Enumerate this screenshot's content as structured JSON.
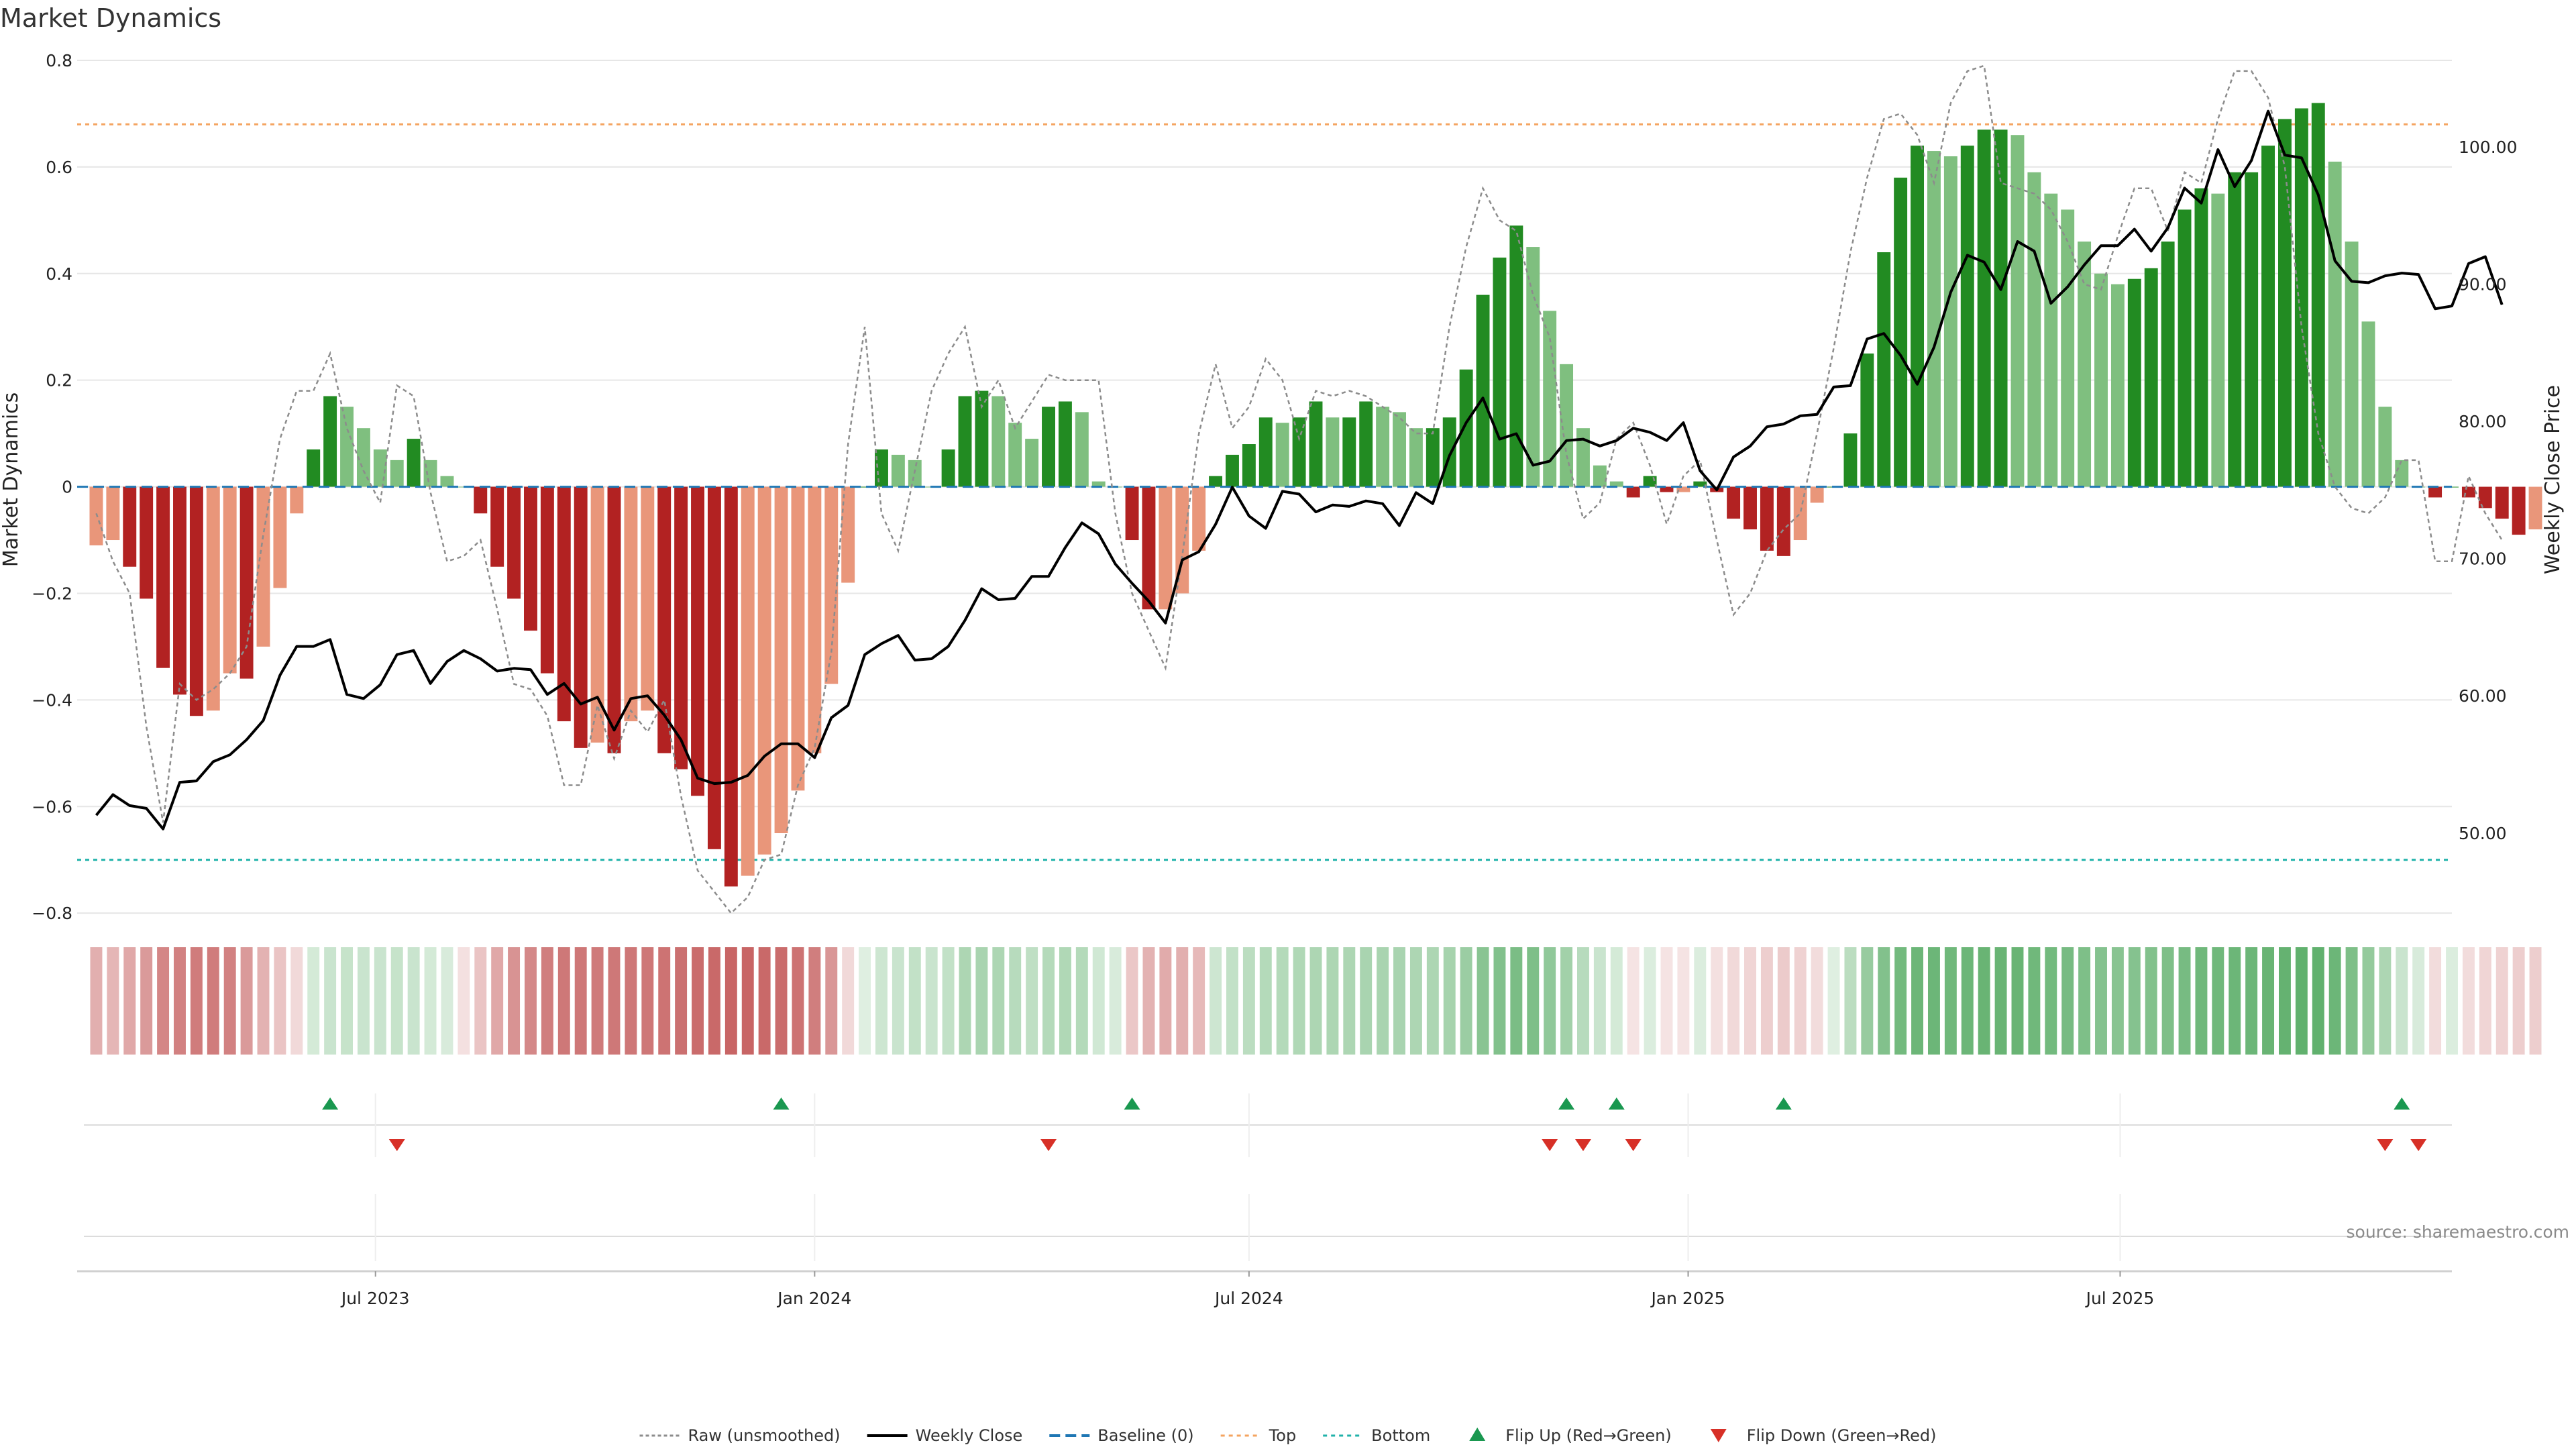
{
  "chart_data": {
    "type": "bar",
    "title": "Market Dynamics",
    "ylabel": "Market Dynamics",
    "y2label": "Weekly Close Price",
    "ylim": [
      -0.83,
      0.8
    ],
    "y2lim": [
      43.0,
      106.3
    ],
    "yticks": [
      {
        "v": 0.8,
        "label": "0.8"
      },
      {
        "v": 0.6,
        "label": "0.6"
      },
      {
        "v": 0.4,
        "label": "0.4"
      },
      {
        "v": 0.2,
        "label": "0.2"
      },
      {
        "v": 0,
        "label": "0"
      },
      {
        "v": -0.2,
        "label": "−0.2"
      },
      {
        "v": -0.4,
        "label": "−0.4"
      },
      {
        "v": -0.6,
        "label": "−0.6"
      },
      {
        "v": -0.8,
        "label": "−0.8"
      }
    ],
    "y2ticks": [
      {
        "v": 100,
        "label": "100.00"
      },
      {
        "v": 90,
        "label": "90.00"
      },
      {
        "v": 80,
        "label": "80.00"
      },
      {
        "v": 70,
        "label": "70.00"
      },
      {
        "v": 60,
        "label": "60.00"
      },
      {
        "v": 50,
        "label": "50.00"
      }
    ],
    "x_start": "2023-03-06",
    "x_step_days": 7,
    "x_range": [
      "2023-02-26",
      "2025-11-17"
    ],
    "xticks": [
      {
        "date": "2023-07-01",
        "label": "Jul 2023"
      },
      {
        "date": "2024-01-01",
        "label": "Jan 2024"
      },
      {
        "date": "2024-07-01",
        "label": "Jul 2024"
      },
      {
        "date": "2025-01-01",
        "label": "Jan 2025"
      },
      {
        "date": "2025-07-01",
        "label": "Jul 2025"
      }
    ],
    "top_line": 0.68,
    "bottom_line": -0.7,
    "baseline": 0,
    "grid": true,
    "legend_position": "bottom-center",
    "market_dynamics": [
      -0.11,
      -0.1,
      -0.15,
      -0.21,
      -0.34,
      -0.39,
      -0.43,
      -0.42,
      -0.35,
      -0.36,
      -0.3,
      -0.19,
      -0.05,
      0.07,
      0.17,
      0.15,
      0.11,
      0.07,
      0.05,
      0.09,
      0.05,
      0.02,
      0.0,
      -0.05,
      -0.15,
      -0.21,
      -0.27,
      -0.35,
      -0.44,
      -0.49,
      -0.48,
      -0.5,
      -0.44,
      -0.42,
      -0.5,
      -0.53,
      -0.58,
      -0.68,
      -0.75,
      -0.73,
      -0.69,
      -0.65,
      -0.57,
      -0.5,
      -0.37,
      -0.18,
      0.0,
      0.07,
      0.06,
      0.05,
      0.0,
      0.07,
      0.17,
      0.18,
      0.17,
      0.12,
      0.09,
      0.15,
      0.16,
      0.14,
      0.01,
      0.0,
      -0.1,
      -0.23,
      -0.23,
      -0.2,
      -0.12,
      0.02,
      0.06,
      0.08,
      0.13,
      0.12,
      0.13,
      0.16,
      0.13,
      0.13,
      0.16,
      0.15,
      0.14,
      0.11,
      0.11,
      0.13,
      0.22,
      0.36,
      0.43,
      0.49,
      0.45,
      0.33,
      0.23,
      0.11,
      0.04,
      0.01,
      -0.02,
      0.02,
      -0.01,
      -0.01,
      0.01,
      -0.01,
      -0.06,
      -0.08,
      -0.12,
      -0.13,
      -0.1,
      -0.03,
      0.0,
      0.1,
      0.25,
      0.44,
      0.58,
      0.64,
      0.63,
      0.62,
      0.64,
      0.67,
      0.67,
      0.66,
      0.59,
      0.55,
      0.52,
      0.46,
      0.4,
      0.38,
      0.39,
      0.41,
      0.46,
      0.52,
      0.56,
      0.55,
      0.59,
      0.59,
      0.64,
      0.69,
      0.71,
      0.72,
      0.61,
      0.46,
      0.31,
      0.15,
      0.05,
      0.0,
      -0.02,
      0.0,
      -0.02,
      -0.04,
      -0.06,
      -0.09,
      -0.08
    ],
    "raw_unsmoothed": [
      -0.05,
      -0.14,
      -0.2,
      -0.45,
      -0.63,
      -0.37,
      -0.4,
      -0.38,
      -0.35,
      -0.3,
      -0.09,
      0.09,
      0.18,
      0.18,
      0.25,
      0.11,
      0.03,
      -0.03,
      0.19,
      0.17,
      -0.01,
      -0.14,
      -0.13,
      -0.1,
      -0.23,
      -0.37,
      -0.38,
      -0.43,
      -0.56,
      -0.56,
      -0.41,
      -0.51,
      -0.42,
      -0.46,
      -0.4,
      -0.58,
      -0.72,
      -0.76,
      -0.8,
      -0.77,
      -0.7,
      -0.69,
      -0.56,
      -0.49,
      -0.31,
      0.08,
      0.3,
      -0.05,
      -0.12,
      0.03,
      0.18,
      0.25,
      0.3,
      0.15,
      0.2,
      0.11,
      0.16,
      0.21,
      0.2,
      0.2,
      0.2,
      -0.05,
      -0.2,
      -0.27,
      -0.34,
      -0.13,
      0.1,
      0.23,
      0.11,
      0.15,
      0.24,
      0.2,
      0.09,
      0.18,
      0.17,
      0.18,
      0.17,
      0.15,
      0.13,
      0.1,
      0.1,
      0.3,
      0.45,
      0.56,
      0.5,
      0.48,
      0.36,
      0.28,
      0.06,
      -0.06,
      -0.03,
      0.09,
      0.12,
      0.04,
      -0.07,
      0.02,
      0.05,
      -0.1,
      -0.24,
      -0.2,
      -0.12,
      -0.08,
      -0.05,
      0.1,
      0.26,
      0.44,
      0.58,
      0.69,
      0.7,
      0.66,
      0.57,
      0.72,
      0.78,
      0.79,
      0.57,
      0.56,
      0.55,
      0.52,
      0.46,
      0.38,
      0.37,
      0.47,
      0.56,
      0.56,
      0.48,
      0.59,
      0.57,
      0.69,
      0.78,
      0.78,
      0.73,
      0.6,
      0.3,
      0.1,
      0.0,
      -0.04,
      -0.05,
      -0.02,
      0.05,
      0.05,
      -0.14,
      -0.14,
      0.02,
      -0.05,
      -0.1
    ],
    "weekly_close": [
      51.3,
      52.8,
      52.0,
      51.8,
      50.3,
      53.7,
      53.8,
      55.2,
      55.7,
      56.8,
      58.2,
      61.5,
      63.6,
      63.6,
      64.1,
      60.1,
      59.8,
      60.8,
      63.0,
      63.3,
      60.9,
      62.5,
      63.3,
      62.7,
      61.8,
      62.0,
      61.9,
      60.1,
      60.9,
      59.4,
      59.9,
      57.5,
      59.8,
      60.0,
      58.6,
      56.8,
      54.0,
      53.6,
      53.7,
      54.2,
      55.6,
      56.5,
      56.5,
      55.5,
      58.4,
      59.3,
      63.0,
      63.8,
      64.4,
      62.6,
      62.7,
      63.6,
      65.5,
      67.8,
      67.0,
      67.1,
      68.7,
      68.7,
      70.8,
      72.6,
      71.8,
      69.6,
      68.2,
      66.9,
      65.3,
      69.9,
      70.5,
      72.5,
      75.2,
      73.1,
      72.2,
      74.9,
      74.7,
      73.4,
      73.9,
      73.8,
      74.2,
      74.0,
      72.4,
      74.8,
      74.0,
      77.5,
      79.9,
      81.7,
      78.7,
      79.1,
      76.8,
      77.1,
      78.6,
      78.7,
      78.2,
      78.6,
      79.5,
      79.2,
      78.6,
      79.9,
      76.4,
      75.0,
      77.4,
      78.2,
      79.6,
      79.8,
      80.4,
      80.5,
      82.5,
      82.6,
      86.0,
      86.4,
      84.8,
      82.7,
      85.4,
      89.4,
      92.1,
      91.6,
      89.6,
      93.1,
      92.4,
      88.6,
      89.8,
      91.4,
      92.8,
      92.8,
      94.0,
      92.4,
      94.1,
      97.0,
      95.9,
      99.8,
      97.1,
      99.0,
      102.6,
      99.4,
      99.2,
      96.5,
      91.7,
      90.2,
      90.1,
      90.6,
      90.8,
      90.7,
      88.2,
      88.4,
      91.5,
      92.0,
      88.5
    ],
    "strength_strip": [
      -0.46,
      -0.42,
      -0.5,
      -0.58,
      -0.69,
      -0.72,
      -0.75,
      -0.75,
      -0.72,
      -0.58,
      -0.44,
      -0.34,
      -0.22,
      0.24,
      0.3,
      0.32,
      0.3,
      0.3,
      0.32,
      0.3,
      0.24,
      0.22,
      -0.18,
      -0.34,
      -0.5,
      -0.62,
      -0.68,
      -0.74,
      -0.77,
      -0.78,
      -0.76,
      -0.77,
      -0.78,
      -0.78,
      -0.8,
      -0.82,
      -0.84,
      -0.86,
      -0.88,
      -0.88,
      -0.86,
      -0.84,
      -0.8,
      -0.74,
      -0.6,
      -0.22,
      0.18,
      0.28,
      0.3,
      0.34,
      0.3,
      0.34,
      0.46,
      0.48,
      0.46,
      0.4,
      0.36,
      0.42,
      0.44,
      0.42,
      0.26,
      0.22,
      -0.32,
      -0.44,
      -0.48,
      -0.46,
      -0.4,
      0.28,
      0.34,
      0.38,
      0.42,
      0.42,
      0.44,
      0.46,
      0.46,
      0.46,
      0.48,
      0.48,
      0.48,
      0.46,
      0.46,
      0.5,
      0.56,
      0.66,
      0.7,
      0.74,
      0.72,
      0.62,
      0.52,
      0.4,
      0.3,
      0.24,
      -0.16,
      0.2,
      -0.16,
      -0.16,
      0.2,
      -0.18,
      -0.22,
      -0.24,
      -0.28,
      -0.3,
      -0.26,
      -0.2,
      0.18,
      0.38,
      0.58,
      0.7,
      0.78,
      0.82,
      0.82,
      0.8,
      0.82,
      0.84,
      0.84,
      0.84,
      0.8,
      0.78,
      0.76,
      0.72,
      0.68,
      0.66,
      0.68,
      0.7,
      0.72,
      0.76,
      0.8,
      0.8,
      0.82,
      0.82,
      0.84,
      0.86,
      0.88,
      0.88,
      0.82,
      0.72,
      0.6,
      0.46,
      0.3,
      0.22,
      -0.2,
      0.2,
      -0.2,
      -0.24,
      -0.26,
      -0.28,
      -0.28
    ],
    "flip_up": [
      "2023-06-12",
      "2023-12-18",
      "2024-05-13",
      "2024-11-11",
      "2024-12-02",
      "2025-02-10",
      "2025-10-27"
    ],
    "flip_down": [
      "2023-07-10",
      "2024-04-08",
      "2024-11-04",
      "2024-11-18",
      "2024-12-09",
      "2025-10-20",
      "2025-11-03"
    ],
    "legend": [
      {
        "key": "raw",
        "label": "Raw (unsmoothed)"
      },
      {
        "key": "close",
        "label": "Weekly Close"
      },
      {
        "key": "baseline",
        "label": "Baseline (0)"
      },
      {
        "key": "top",
        "label": "Top"
      },
      {
        "key": "bottom",
        "label": "Bottom"
      },
      {
        "key": "flipup",
        "label": "Flip Up (Red→Green)"
      },
      {
        "key": "flipdown",
        "label": "Flip Down (Green→Red)"
      }
    ],
    "colors": {
      "green_strong": "#228b22",
      "green_weak": "#7fbf7f",
      "red_strong": "#b22222",
      "red_weak": "#e9967a",
      "raw": "#8c8c8c",
      "close": "#000000",
      "baseline": "#1f77b4",
      "top": "#f4a460",
      "bottom": "#20b2aa",
      "flip_up": "#1a9850",
      "flip_down": "#d73027",
      "grid": "#e6e6e6"
    }
  },
  "source_note": "source: sharemaestro.com"
}
